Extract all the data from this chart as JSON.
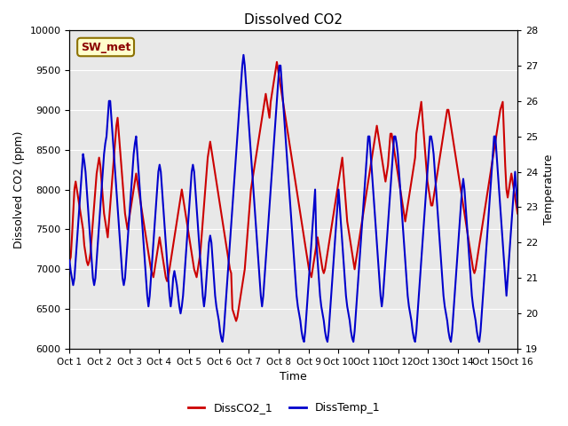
{
  "title": "Dissolved CO2",
  "xlabel": "Time",
  "ylabel_left": "Dissolved CO2 (ppm)",
  "ylabel_right": "Temperature",
  "annotation": "SW_met",
  "ylim_left": [
    6000,
    10000
  ],
  "ylim_right": [
    19.0,
    28.0
  ],
  "yticks_left": [
    6000,
    6500,
    7000,
    7500,
    8000,
    8500,
    9000,
    9500,
    10000
  ],
  "yticks_right": [
    19.0,
    20.0,
    21.0,
    22.0,
    23.0,
    24.0,
    25.0,
    26.0,
    27.0,
    28.0
  ],
  "xtick_labels": [
    "Oct 1",
    "Oct 2",
    "Oct 3",
    "Oct 4",
    "Oct 5",
    "Oct 6",
    "Oct 7",
    "Oct 8",
    "Oct 9",
    "Oct 10",
    "Oct 11",
    "Oct 12",
    "Oct 13",
    "Oct 14",
    "Oct 15",
    "Oct 16"
  ],
  "color_co2": "#cc0000",
  "color_temp": "#0000cc",
  "color_bg": "#e8e8e8",
  "legend_co2": "DissCO2_1",
  "legend_temp": "DissTemp_1",
  "linewidth": 1.5,
  "co2_data": [
    7100,
    7150,
    7400,
    7700,
    8000,
    8100,
    8000,
    7900,
    7800,
    7700,
    7600,
    7500,
    7300,
    7200,
    7100,
    7050,
    7100,
    7200,
    7400,
    7600,
    7800,
    8000,
    8200,
    8300,
    8400,
    8300,
    8100,
    7900,
    7700,
    7600,
    7500,
    7400,
    7600,
    7800,
    8000,
    8200,
    8400,
    8600,
    8800,
    8900,
    8700,
    8500,
    8300,
    8100,
    7900,
    7700,
    7600,
    7500,
    7600,
    7700,
    7800,
    7900,
    8000,
    8100,
    8200,
    8100,
    8000,
    7900,
    7800,
    7700,
    7600,
    7500,
    7400,
    7300,
    7200,
    7100,
    7000,
    6950,
    6900,
    7000,
    7100,
    7200,
    7300,
    7400,
    7300,
    7200,
    7100,
    7000,
    6900,
    6850,
    6900,
    7000,
    7100,
    7200,
    7300,
    7400,
    7500,
    7600,
    7700,
    7800,
    7900,
    8000,
    7900,
    7800,
    7700,
    7600,
    7500,
    7400,
    7300,
    7200,
    7100,
    7000,
    6950,
    6900,
    7000,
    7100,
    7200,
    7400,
    7600,
    7800,
    8000,
    8200,
    8400,
    8500,
    8600,
    8500,
    8400,
    8300,
    8200,
    8100,
    8000,
    7900,
    7800,
    7700,
    7600,
    7500,
    7400,
    7300,
    7200,
    7100,
    7000,
    6950,
    6500,
    6450,
    6400,
    6350,
    6400,
    6500,
    6600,
    6700,
    6800,
    6900,
    7000,
    7200,
    7400,
    7600,
    7800,
    8000,
    8100,
    8200,
    8300,
    8400,
    8500,
    8600,
    8700,
    8800,
    8900,
    9000,
    9100,
    9200,
    9100,
    9000,
    8900,
    9100,
    9200,
    9300,
    9400,
    9500,
    9600,
    9500,
    9400,
    9300,
    9200,
    9100,
    9000,
    8900,
    8800,
    8700,
    8600,
    8500,
    8400,
    8300,
    8200,
    8100,
    8000,
    7900,
    7800,
    7700,
    7600,
    7500,
    7400,
    7300,
    7200,
    7100,
    7000,
    6950,
    6900,
    7000,
    7100,
    7200,
    7300,
    7400,
    7300,
    7200,
    7100,
    7000,
    6950,
    7000,
    7100,
    7200,
    7300,
    7400,
    7500,
    7600,
    7700,
    7800,
    7900,
    8000,
    8100,
    8200,
    8300,
    8400,
    8200,
    8000,
    7800,
    7600,
    7500,
    7400,
    7300,
    7200,
    7100,
    7000,
    7100,
    7200,
    7300,
    7400,
    7500,
    7600,
    7700,
    7800,
    7900,
    8000,
    8100,
    8200,
    8300,
    8400,
    8500,
    8600,
    8700,
    8800,
    8700,
    8600,
    8500,
    8400,
    8300,
    8200,
    8100,
    8200,
    8300,
    8500,
    8700,
    8700,
    8600,
    8500,
    8400,
    8300,
    8200,
    8100,
    8000,
    7900,
    7800,
    7700,
    7600,
    7700,
    7800,
    7900,
    8000,
    8100,
    8200,
    8300,
    8400,
    8700,
    8800,
    8900,
    9000,
    9100,
    8900,
    8700,
    8500,
    8300,
    8100,
    8000,
    7900,
    7800,
    7800,
    7900,
    8000,
    8100,
    8200,
    8300,
    8400,
    8500,
    8600,
    8700,
    8800,
    8900,
    9000,
    9000,
    8900,
    8800,
    8700,
    8600,
    8500,
    8400,
    8300,
    8200,
    8100,
    8000,
    7900,
    7800,
    7700,
    7600,
    7500,
    7400,
    7300,
    7200,
    7100,
    7000,
    6950,
    7000,
    7100,
    7200,
    7300,
    7400,
    7500,
    7600,
    7700,
    7800,
    7900,
    8000,
    8100,
    8200,
    8300,
    8400,
    8500,
    8600,
    8700,
    8800,
    8900,
    9000,
    9050,
    9100,
    8700,
    8300,
    8000,
    7900,
    8000,
    8100,
    8200,
    8100,
    8000,
    7900,
    7800,
    7700
  ],
  "temp_data": [
    21.5,
    21.2,
    21.0,
    20.8,
    21.0,
    21.5,
    22.0,
    22.5,
    23.0,
    23.5,
    24.0,
    24.5,
    24.3,
    24.0,
    23.5,
    23.0,
    22.5,
    22.0,
    21.5,
    21.0,
    20.8,
    21.0,
    21.5,
    22.0,
    22.5,
    23.0,
    23.5,
    24.0,
    24.5,
    24.8,
    25.0,
    25.5,
    26.0,
    26.0,
    25.5,
    25.0,
    24.5,
    24.0,
    23.5,
    23.0,
    22.5,
    22.0,
    21.5,
    21.0,
    20.8,
    21.0,
    21.5,
    22.0,
    22.5,
    23.0,
    23.5,
    24.0,
    24.5,
    24.8,
    25.0,
    24.5,
    24.0,
    23.5,
    23.0,
    22.5,
    22.0,
    21.5,
    21.0,
    20.5,
    20.2,
    20.5,
    21.0,
    21.5,
    22.0,
    22.5,
    23.0,
    23.5,
    24.0,
    24.2,
    24.0,
    23.5,
    23.0,
    22.5,
    22.0,
    21.5,
    21.0,
    20.5,
    20.2,
    20.5,
    21.0,
    21.2,
    21.0,
    20.8,
    20.5,
    20.2,
    20.0,
    20.2,
    20.5,
    21.0,
    21.5,
    22.0,
    22.5,
    23.0,
    23.5,
    24.0,
    24.2,
    24.0,
    23.5,
    23.0,
    22.5,
    22.0,
    21.5,
    21.0,
    20.5,
    20.2,
    20.5,
    21.0,
    21.5,
    22.0,
    22.2,
    22.0,
    21.5,
    21.0,
    20.5,
    20.2,
    20.0,
    19.8,
    19.5,
    19.3,
    19.2,
    19.5,
    20.0,
    20.5,
    21.0,
    21.5,
    22.0,
    22.5,
    23.0,
    23.5,
    24.0,
    24.5,
    25.0,
    25.5,
    26.0,
    26.5,
    27.0,
    27.3,
    27.0,
    26.5,
    26.0,
    25.5,
    25.0,
    24.5,
    24.0,
    23.5,
    23.0,
    22.5,
    22.0,
    21.5,
    21.0,
    20.5,
    20.2,
    20.5,
    21.0,
    21.5,
    22.0,
    22.5,
    23.0,
    23.5,
    24.0,
    24.5,
    25.0,
    25.5,
    26.0,
    26.5,
    27.0,
    27.0,
    26.5,
    26.0,
    25.5,
    25.0,
    24.5,
    24.0,
    23.5,
    23.0,
    22.5,
    22.0,
    21.5,
    21.0,
    20.5,
    20.2,
    20.0,
    19.8,
    19.5,
    19.3,
    19.2,
    19.5,
    20.0,
    20.5,
    21.0,
    21.5,
    22.0,
    22.5,
    23.0,
    23.5,
    22.0,
    21.5,
    21.0,
    20.5,
    20.2,
    20.0,
    19.8,
    19.5,
    19.3,
    19.2,
    19.5,
    20.0,
    20.5,
    21.0,
    21.5,
    22.0,
    22.5,
    23.0,
    23.5,
    23.0,
    22.5,
    22.0,
    21.5,
    21.0,
    20.5,
    20.2,
    20.0,
    19.8,
    19.5,
    19.3,
    19.2,
    19.5,
    20.0,
    20.5,
    21.0,
    21.5,
    22.0,
    22.5,
    23.0,
    23.5,
    24.0,
    24.5,
    25.0,
    25.0,
    24.5,
    24.0,
    23.5,
    23.0,
    22.5,
    22.0,
    21.5,
    21.0,
    20.5,
    20.2,
    20.5,
    21.0,
    21.5,
    22.0,
    22.5,
    23.0,
    23.5,
    24.0,
    24.5,
    25.0,
    25.0,
    24.8,
    24.5,
    24.0,
    23.5,
    23.0,
    22.5,
    22.0,
    21.5,
    21.0,
    20.5,
    20.2,
    20.0,
    19.8,
    19.5,
    19.3,
    19.2,
    19.5,
    20.0,
    20.5,
    21.0,
    21.5,
    22.0,
    22.5,
    23.0,
    23.5,
    24.0,
    24.5,
    25.0,
    25.0,
    24.8,
    24.5,
    24.0,
    23.5,
    23.0,
    22.5,
    22.0,
    21.5,
    21.0,
    20.5,
    20.2,
    20.0,
    19.8,
    19.5,
    19.3,
    19.2,
    19.5,
    20.0,
    20.5,
    21.0,
    21.5,
    22.0,
    22.5,
    23.0,
    23.5,
    23.8,
    23.5,
    23.0,
    22.5,
    22.0,
    21.5,
    21.0,
    20.5,
    20.2,
    20.0,
    19.8,
    19.5,
    19.3,
    19.2,
    19.5,
    20.0,
    20.5,
    21.0,
    21.5,
    22.0,
    22.5,
    23.0,
    23.5,
    24.0,
    24.5,
    25.0,
    25.0,
    24.5,
    24.0,
    23.5,
    23.0,
    22.5,
    22.0,
    21.5,
    21.0,
    20.5,
    21.0,
    21.5,
    22.0,
    22.5,
    23.0,
    23.5,
    24.0,
    23.5,
    23.0
  ]
}
